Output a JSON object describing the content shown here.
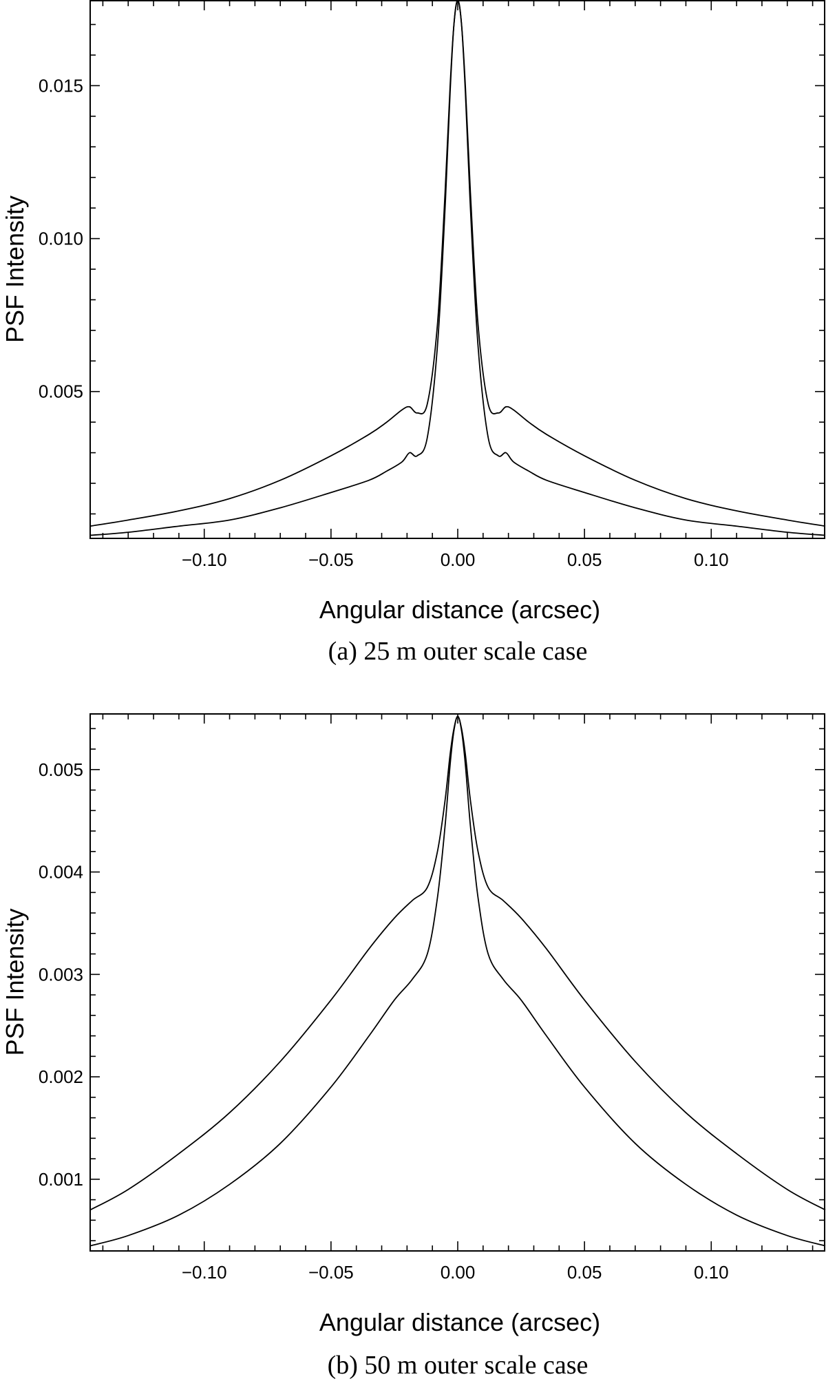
{
  "chart_data": [
    {
      "type": "line",
      "caption": "(a) 25 m outer scale case",
      "xlabel": "Angular distance (arcsec)",
      "ylabel": "PSF Intensity",
      "xlim": [
        -0.145,
        0.145
      ],
      "ylim": [
        0.0002,
        0.0178
      ],
      "xticks": [
        -0.1,
        -0.05,
        0.0,
        0.05,
        0.1
      ],
      "xtick_labels": [
        "−0.10",
        "−0.05",
        "0.00",
        "0.05",
        "0.10"
      ],
      "yticks": [
        0.005,
        0.01,
        0.015
      ],
      "ytick_labels": [
        "0.005",
        "0.010",
        "0.015"
      ],
      "grid": false,
      "series": [
        {
          "x": [
            -0.145,
            -0.13,
            -0.11,
            -0.09,
            -0.07,
            -0.05,
            -0.035,
            -0.028,
            -0.022,
            -0.019,
            -0.016,
            -0.012,
            -0.008,
            -0.005,
            -0.003,
            -0.0015,
            0.0,
            0.0015,
            0.003,
            0.005,
            0.008,
            0.012,
            0.016,
            0.019,
            0.022,
            0.028,
            0.035,
            0.05,
            0.07,
            0.09,
            0.11,
            0.13,
            0.145
          ],
          "y": [
            0.0006,
            0.0008,
            0.0011,
            0.0015,
            0.0021,
            0.0029,
            0.0036,
            0.004,
            0.0044,
            0.0045,
            0.0043,
            0.0046,
            0.0072,
            0.0115,
            0.015,
            0.017,
            0.0178,
            0.017,
            0.015,
            0.0115,
            0.0072,
            0.0046,
            0.0043,
            0.0045,
            0.0044,
            0.004,
            0.0036,
            0.0029,
            0.0021,
            0.0015,
            0.0011,
            0.0008,
            0.0006
          ]
        },
        {
          "x": [
            -0.145,
            -0.13,
            -0.11,
            -0.09,
            -0.07,
            -0.05,
            -0.035,
            -0.028,
            -0.022,
            -0.019,
            -0.016,
            -0.012,
            -0.008,
            -0.005,
            -0.003,
            -0.0015,
            0.0,
            0.0015,
            0.003,
            0.005,
            0.008,
            0.012,
            0.016,
            0.019,
            0.022,
            0.028,
            0.035,
            0.05,
            0.07,
            0.09,
            0.11,
            0.13,
            0.145
          ],
          "y": [
            0.0003,
            0.0004,
            0.0006,
            0.0008,
            0.0012,
            0.0017,
            0.0021,
            0.0024,
            0.0027,
            0.003,
            0.0029,
            0.0035,
            0.0065,
            0.011,
            0.0148,
            0.017,
            0.0178,
            0.017,
            0.0148,
            0.011,
            0.0065,
            0.0035,
            0.0029,
            0.003,
            0.0027,
            0.0024,
            0.0021,
            0.0017,
            0.0012,
            0.0008,
            0.0006,
            0.0004,
            0.0003
          ]
        }
      ]
    },
    {
      "type": "line",
      "caption": "(b) 50 m outer scale case",
      "xlabel": "Angular distance (arcsec)",
      "ylabel": "PSF Intensity",
      "xlim": [
        -0.145,
        0.145
      ],
      "ylim": [
        0.0003,
        0.00555
      ],
      "xticks": [
        -0.1,
        -0.05,
        0.0,
        0.05,
        0.1
      ],
      "xtick_labels": [
        "−0.10",
        "−0.05",
        "0.00",
        "0.05",
        "0.10"
      ],
      "yticks": [
        0.001,
        0.002,
        0.003,
        0.004,
        0.005
      ],
      "ytick_labels": [
        "0.001",
        "0.002",
        "0.003",
        "0.004",
        "0.005"
      ],
      "grid": false,
      "series": [
        {
          "x": [
            -0.145,
            -0.13,
            -0.11,
            -0.09,
            -0.07,
            -0.05,
            -0.035,
            -0.025,
            -0.018,
            -0.012,
            -0.008,
            -0.005,
            -0.003,
            -0.0015,
            0.0,
            0.0015,
            0.003,
            0.005,
            0.008,
            0.012,
            0.018,
            0.025,
            0.035,
            0.05,
            0.07,
            0.09,
            0.11,
            0.13,
            0.145
          ],
          "y": [
            0.0007,
            0.0009,
            0.00125,
            0.00165,
            0.00215,
            0.00275,
            0.00325,
            0.00355,
            0.00372,
            0.00385,
            0.0042,
            0.0047,
            0.00515,
            0.0054,
            0.00552,
            0.0054,
            0.00515,
            0.0047,
            0.0042,
            0.00385,
            0.00372,
            0.00355,
            0.00325,
            0.00275,
            0.00215,
            0.00165,
            0.00125,
            0.0009,
            0.0007
          ]
        },
        {
          "x": [
            -0.145,
            -0.13,
            -0.11,
            -0.09,
            -0.07,
            -0.05,
            -0.035,
            -0.025,
            -0.018,
            -0.012,
            -0.008,
            -0.005,
            -0.003,
            -0.0015,
            0.0,
            0.0015,
            0.003,
            0.005,
            0.008,
            0.012,
            0.018,
            0.025,
            0.035,
            0.05,
            0.07,
            0.09,
            0.11,
            0.13,
            0.145
          ],
          "y": [
            0.00035,
            0.00045,
            0.00065,
            0.00095,
            0.00135,
            0.0019,
            0.0024,
            0.00275,
            0.00295,
            0.0032,
            0.00375,
            0.00445,
            0.00505,
            0.00538,
            0.00552,
            0.00538,
            0.00505,
            0.00445,
            0.00375,
            0.0032,
            0.00295,
            0.00275,
            0.0024,
            0.0019,
            0.00135,
            0.00095,
            0.00065,
            0.00045,
            0.00035
          ]
        }
      ]
    }
  ]
}
